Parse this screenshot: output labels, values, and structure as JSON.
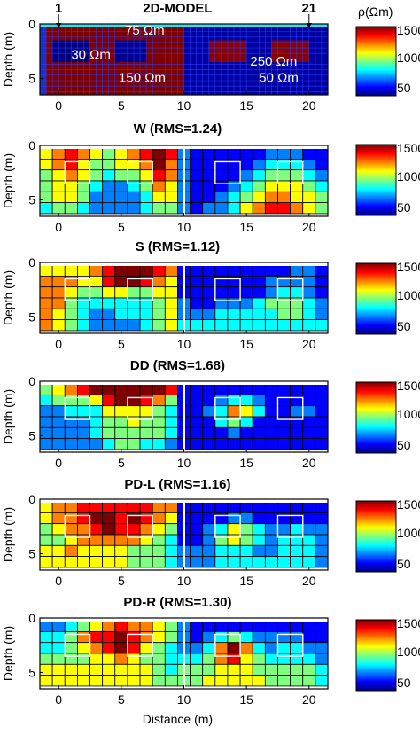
{
  "chart_data": {
    "type": "heatmap",
    "colorbar": {
      "label": "ρ(Ωm)",
      "ticks": [
        "1500",
        "1000",
        "50"
      ],
      "colormap": "jet",
      "vmin": 50,
      "vmax": 1500,
      "colors": [
        "#00007f",
        "#0000ff",
        "#007fff",
        "#00ffff",
        "#7fff7f",
        "#ffff00",
        "#ff7f00",
        "#ff0000",
        "#7f0000"
      ]
    },
    "xlabel": "Distance (m)",
    "ylabel": "Depth (m)",
    "xticks": [
      "0",
      "5",
      "10",
      "15",
      "20"
    ],
    "yticks": [
      "0",
      "5"
    ],
    "xlim": [
      -1.5,
      21.5
    ],
    "ylim": [
      0,
      6.5
    ],
    "model": {
      "title": "2D-MODEL",
      "electrode_labels": [
        "1",
        "21"
      ],
      "electrode_x": [
        0,
        20
      ],
      "regions": [
        {
          "label": "75 Ωm",
          "x": [
            -1,
            10
          ],
          "y": [
            0.2,
            6.5
          ],
          "color": "#7f0000"
        },
        {
          "label": "",
          "x": [
            10,
            21.5
          ],
          "y": [
            0.2,
            6.5
          ],
          "color": "#0000a0"
        },
        {
          "label": "30 Ωm",
          "x": [
            -0.5,
            2.5
          ],
          "y": [
            1.5,
            3.5
          ],
          "color": "#00007f"
        },
        {
          "label": "",
          "x": [
            4.5,
            7.0
          ],
          "y": [
            1.5,
            3.5
          ],
          "color": "#000090"
        },
        {
          "label": "250 Ωm",
          "x": [
            12.0,
            15.0
          ],
          "y": [
            1.5,
            3.5
          ],
          "color": "#8b0000"
        },
        {
          "label": "",
          "x": [
            17.0,
            20.0
          ],
          "y": [
            1.5,
            3.5
          ],
          "color": "#8b0000"
        }
      ],
      "region_labels": [
        {
          "text": "75 Ωm",
          "x": 5.3,
          "y": 0.55
        },
        {
          "text": "30 Ωm",
          "x": 1.0,
          "y": 2.8
        },
        {
          "text": "150 Ωm",
          "x": 4.8,
          "y": 4.9
        },
        {
          "text": "250 Ωm",
          "x": 15.3,
          "y": 3.4
        },
        {
          "text": "50 Ωm",
          "x": 16.0,
          "y": 4.9
        }
      ]
    },
    "inversion_rows": [
      0.75,
      1.75,
      2.75,
      3.75,
      4.75,
      5.75
    ],
    "inversion_cols": [
      -1.0,
      0.0,
      1.0,
      2.0,
      3.0,
      4.0,
      5.0,
      6.0,
      7.0,
      8.0,
      9.0,
      10.0,
      11.0,
      12.0,
      13.0,
      14.0,
      15.0,
      16.0,
      17.0,
      18.0,
      19.0,
      20.0,
      21.0
    ],
    "anomaly_boxes": [
      {
        "x": [
          0.5,
          2.5
        ],
        "y": [
          1.5,
          3.5
        ]
      },
      {
        "x": [
          5.5,
          7.5
        ],
        "y": [
          1.5,
          3.5
        ]
      },
      {
        "x": [
          12.5,
          14.5
        ],
        "y": [
          1.5,
          3.5
        ]
      },
      {
        "x": [
          17.5,
          19.5
        ],
        "y": [
          1.5,
          3.5
        ]
      }
    ],
    "divider_x": 10,
    "inversions": [
      {
        "title": "W (RMS=1.24)",
        "values": [
          [
            5,
            6,
            7,
            6,
            5,
            4,
            5,
            6,
            7,
            8,
            7,
            2,
            1,
            1,
            1,
            1,
            1,
            1,
            2,
            2,
            2,
            1,
            1
          ],
          [
            5,
            6,
            7,
            5,
            4,
            4,
            5,
            5,
            6,
            8,
            6,
            2,
            1,
            1,
            1,
            1,
            1,
            2,
            3,
            3,
            3,
            2,
            1
          ],
          [
            4,
            5,
            6,
            5,
            4,
            3,
            4,
            4,
            5,
            7,
            6,
            2,
            1,
            1,
            1,
            1,
            2,
            3,
            4,
            4,
            4,
            3,
            2
          ],
          [
            4,
            5,
            5,
            4,
            3,
            2,
            2,
            3,
            4,
            6,
            5,
            2,
            1,
            1,
            1,
            2,
            3,
            4,
            5,
            5,
            5,
            4,
            3
          ],
          [
            4,
            5,
            5,
            4,
            2,
            2,
            2,
            2,
            3,
            5,
            5,
            2,
            1,
            1,
            2,
            3,
            4,
            5,
            6,
            6,
            5,
            5,
            4
          ],
          [
            3,
            4,
            4,
            3,
            2,
            2,
            2,
            2,
            3,
            4,
            4,
            2,
            1,
            2,
            2,
            3,
            5,
            6,
            7,
            7,
            6,
            5,
            4
          ]
        ]
      },
      {
        "title": "S (RMS=1.12)",
        "values": [
          [
            5,
            5,
            5,
            5,
            6,
            7,
            8,
            8,
            8,
            7,
            6,
            1,
            1,
            1,
            1,
            1,
            1,
            1,
            1,
            1,
            2,
            2,
            1
          ],
          [
            6,
            6,
            6,
            5,
            5,
            7,
            8,
            8,
            7,
            6,
            5,
            1,
            1,
            1,
            1,
            1,
            1,
            1,
            2,
            2,
            2,
            2,
            1
          ],
          [
            6,
            6,
            5,
            4,
            4,
            5,
            5,
            4,
            4,
            5,
            5,
            1,
            1,
            1,
            1,
            1,
            1,
            1,
            2,
            3,
            3,
            2,
            1
          ],
          [
            6,
            6,
            4,
            3,
            3,
            3,
            3,
            3,
            3,
            4,
            5,
            2,
            1,
            1,
            2,
            2,
            2,
            3,
            4,
            4,
            4,
            3,
            2
          ],
          [
            6,
            5,
            4,
            3,
            2,
            2,
            3,
            3,
            3,
            4,
            5,
            2,
            2,
            2,
            3,
            3,
            3,
            3,
            3,
            4,
            4,
            3,
            2
          ],
          [
            6,
            5,
            4,
            3,
            2,
            2,
            2,
            2,
            3,
            4,
            5,
            3,
            3,
            3,
            3,
            3,
            3,
            3,
            3,
            3,
            3,
            3,
            3
          ]
        ]
      },
      {
        "title": "DD (RMS=1.68)",
        "values": [
          [
            4,
            5,
            6,
            7,
            8,
            8,
            8,
            8,
            8,
            8,
            7,
            1,
            1,
            1,
            1,
            1,
            1,
            1,
            1,
            1,
            1,
            1,
            1
          ],
          [
            3,
            4,
            4,
            4,
            5,
            7,
            8,
            8,
            7,
            6,
            4,
            1,
            1,
            1,
            2,
            3,
            3,
            2,
            1,
            1,
            1,
            1,
            1
          ],
          [
            2,
            2,
            3,
            3,
            3,
            5,
            5,
            5,
            5,
            4,
            3,
            1,
            1,
            2,
            3,
            6,
            5,
            3,
            1,
            1,
            2,
            2,
            1
          ],
          [
            2,
            2,
            2,
            2,
            3,
            4,
            4,
            5,
            4,
            4,
            3,
            1,
            1,
            1,
            3,
            4,
            3,
            1,
            1,
            1,
            1,
            1,
            1
          ],
          [
            2,
            2,
            2,
            2,
            3,
            4,
            4,
            4,
            4,
            4,
            3,
            1,
            1,
            1,
            1,
            2,
            1,
            1,
            1,
            1,
            1,
            1,
            1
          ],
          [
            2,
            2,
            2,
            2,
            2,
            3,
            4,
            4,
            3,
            3,
            2,
            1,
            1,
            1,
            1,
            1,
            1,
            1,
            1,
            1,
            1,
            1,
            1
          ]
        ]
      },
      {
        "title": "PD-L (RMS=1.16)",
        "values": [
          [
            5,
            6,
            6,
            7,
            7,
            7,
            7,
            7,
            7,
            6,
            6,
            1,
            1,
            1,
            1,
            1,
            1,
            1,
            1,
            1,
            1,
            1,
            1
          ],
          [
            5,
            6,
            6,
            7,
            8,
            8,
            7,
            8,
            7,
            6,
            5,
            1,
            1,
            1,
            1,
            2,
            2,
            1,
            1,
            1,
            1,
            1,
            1
          ],
          [
            4,
            5,
            6,
            6,
            7,
            8,
            7,
            7,
            6,
            5,
            4,
            1,
            1,
            2,
            3,
            5,
            4,
            3,
            2,
            2,
            3,
            2,
            2
          ],
          [
            4,
            4,
            5,
            6,
            6,
            6,
            6,
            6,
            5,
            4,
            3,
            1,
            1,
            2,
            4,
            5,
            4,
            3,
            2,
            3,
            3,
            3,
            2
          ],
          [
            5,
            5,
            6,
            5,
            5,
            5,
            5,
            4,
            4,
            4,
            3,
            2,
            2,
            2,
            3,
            3,
            3,
            2,
            2,
            3,
            3,
            3,
            2
          ],
          [
            5,
            5,
            5,
            5,
            5,
            5,
            5,
            4,
            4,
            4,
            3,
            2,
            2,
            2,
            3,
            3,
            3,
            3,
            3,
            3,
            3,
            3,
            2
          ]
        ]
      },
      {
        "title": "PD-R (RMS=1.30)",
        "values": [
          [
            2,
            2,
            3,
            4,
            5,
            6,
            7,
            6,
            6,
            5,
            4,
            2,
            1,
            1,
            1,
            1,
            1,
            1,
            1,
            1,
            1,
            1,
            1
          ],
          [
            3,
            3,
            4,
            6,
            7,
            7,
            8,
            7,
            6,
            5,
            4,
            2,
            1,
            2,
            3,
            4,
            3,
            2,
            2,
            2,
            2,
            1,
            1
          ],
          [
            3,
            3,
            4,
            5,
            6,
            7,
            8,
            7,
            5,
            4,
            3,
            2,
            2,
            3,
            6,
            8,
            6,
            3,
            2,
            3,
            3,
            2,
            2
          ],
          [
            4,
            4,
            4,
            4,
            5,
            5,
            6,
            5,
            4,
            4,
            3,
            3,
            3,
            4,
            6,
            7,
            5,
            4,
            3,
            3,
            3,
            3,
            2
          ],
          [
            5,
            5,
            5,
            5,
            5,
            5,
            5,
            5,
            5,
            4,
            3,
            4,
            4,
            4,
            5,
            5,
            5,
            4,
            4,
            4,
            4,
            4,
            3
          ],
          [
            5,
            5,
            5,
            5,
            5,
            5,
            5,
            5,
            5,
            4,
            4,
            4,
            4,
            5,
            5,
            5,
            5,
            5,
            4,
            4,
            4,
            4,
            3
          ]
        ]
      }
    ]
  }
}
